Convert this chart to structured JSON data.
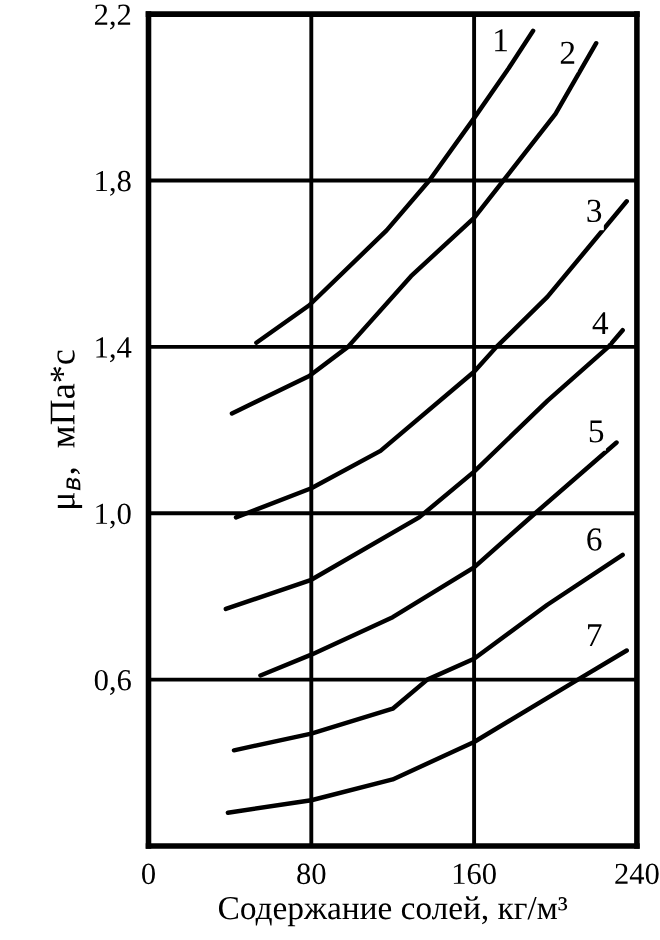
{
  "chart_data": {
    "type": "line",
    "xlabel": "Содержание солей, кг/м³",
    "ylabel": "μ$_{в}$,  мПа*с",
    "xlim": [
      0,
      240
    ],
    "xticks": [
      0,
      80,
      160,
      240
    ],
    "ylim": [
      0.2,
      2.2
    ],
    "yticks": [
      {
        "value": 0.6,
        "label": "0,6"
      },
      {
        "value": 1.0,
        "label": "1,0"
      },
      {
        "value": 1.4,
        "label": "1,4"
      },
      {
        "value": 1.8,
        "label": "1,8"
      },
      {
        "value": 2.2,
        "label": "2,2"
      }
    ],
    "grid": true,
    "marker": "none",
    "line_style": "solid",
    "series": [
      {
        "color": "#000000",
        "x": [
          53,
          79,
          117,
          138,
          160,
          177,
          189
        ],
        "values": [
          1.41,
          1.5,
          1.68,
          1.8,
          1.95,
          2.07,
          2.16
        ]
      },
      {
        "color": "#000000",
        "x": [
          41,
          79,
          98,
          129,
          160,
          176,
          200,
          220
        ],
        "values": [
          1.24,
          1.33,
          1.4,
          1.57,
          1.71,
          1.81,
          1.96,
          2.13
        ]
      },
      {
        "color": "#000000",
        "x": [
          43,
          80,
          114,
          160,
          171,
          196,
          235
        ],
        "values": [
          0.99,
          1.06,
          1.15,
          1.34,
          1.4,
          1.52,
          1.75
        ]
      },
      {
        "color": "#000000",
        "x": [
          38,
          80,
          133,
          160,
          196,
          226,
          233
        ],
        "values": [
          0.77,
          0.84,
          0.99,
          1.1,
          1.27,
          1.4,
          1.44
        ]
      },
      {
        "color": "#000000",
        "x": [
          55,
          80,
          120,
          160,
          190,
          230
        ],
        "values": [
          0.61,
          0.66,
          0.75,
          0.87,
          1.0,
          1.17
        ]
      },
      {
        "color": "#000000",
        "x": [
          42,
          80,
          120,
          137,
          160,
          196,
          233
        ],
        "values": [
          0.43,
          0.47,
          0.53,
          0.6,
          0.65,
          0.78,
          0.9
        ]
      },
      {
        "color": "#000000",
        "x": [
          39,
          80,
          120,
          160,
          211,
          235
        ],
        "values": [
          0.28,
          0.31,
          0.36,
          0.45,
          0.6,
          0.67
        ]
      }
    ],
    "annotations": [
      {
        "text": "1",
        "x": 173,
        "y": 2.13
      },
      {
        "text": "2",
        "x": 206,
        "y": 2.1
      },
      {
        "text": "3",
        "x": 219,
        "y": 1.72
      },
      {
        "text": "4",
        "x": 222,
        "y": 1.45
      },
      {
        "text": "5",
        "x": 220,
        "y": 1.19
      },
      {
        "text": "6",
        "x": 219,
        "y": 0.93
      },
      {
        "text": "7",
        "x": 219,
        "y": 0.7
      }
    ]
  }
}
